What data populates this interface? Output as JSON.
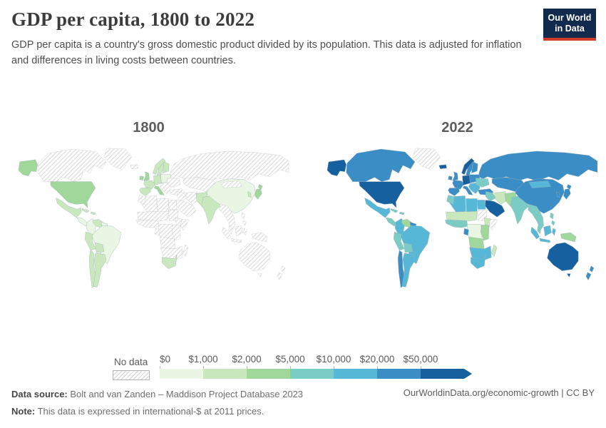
{
  "header": {
    "title": "GDP per capita, 1800 to 2022",
    "subtitle": "GDP per capita is a country's gross domestic product divided by its population. This data is adjusted for inflation and differences in living costs between countries."
  },
  "logo": {
    "line1": "Our World",
    "line2": "in Data",
    "bg": "#122a4d",
    "accent": "#d23a2c"
  },
  "maps": {
    "panels": [
      {
        "year": "1800"
      },
      {
        "year": "2022"
      }
    ]
  },
  "legend": {
    "no_data_label": "No data",
    "tick_labels": [
      "$0",
      "$1,000",
      "$2,000",
      "$5,000",
      "$10,000",
      "$20,000",
      "$50,000"
    ]
  },
  "footer": {
    "source_label": "Data source:",
    "source_text": "Bolt and van Zanden – Maddison Project Database 2023",
    "note_label": "Note:",
    "note_text": "This data is expressed in international-$ at 2011 prices.",
    "right_text": "OurWorldinData.org/economic-growth | CC BY"
  },
  "chart_data": {
    "type": "heatmap",
    "subtype": "choropleth-world-map-pair",
    "title": "GDP per capita, 1800 to 2022",
    "unit": "international-$ at 2011 prices",
    "years": [
      "1800",
      "2022"
    ],
    "bins": [
      {
        "label": "$0–$1,000",
        "color": "#e8f6e3"
      },
      {
        "label": "$1,000–$2,000",
        "color": "#c9e8bd"
      },
      {
        "label": "$2,000–$5,000",
        "color": "#a0d89b"
      },
      {
        "label": "$5,000–$10,000",
        "color": "#7accc4"
      },
      {
        "label": "$10,000–$20,000",
        "color": "#57b7d7"
      },
      {
        "label": "$20,000–$50,000",
        "color": "#3a8ec5"
      },
      {
        "label": "$50,000+",
        "color": "#16609f"
      }
    ],
    "no_data_index": -1,
    "no_data_label": "No data",
    "region_value_order": [
      "1800",
      "2022"
    ],
    "regions": {
      "greenland": [
        -1,
        -1
      ],
      "canada": [
        -1,
        5
      ],
      "alaska": [
        2,
        6
      ],
      "usa": [
        2,
        6
      ],
      "mexico": [
        1,
        4
      ],
      "centralamerica": [
        0,
        3
      ],
      "caribbean": [
        1,
        3
      ],
      "colombia": [
        0,
        4
      ],
      "venezuela": [
        1,
        2
      ],
      "guyanas": [
        0,
        5
      ],
      "peru": [
        1,
        3
      ],
      "brazil": [
        0,
        4
      ],
      "bolivia": [
        1,
        3
      ],
      "chile": [
        1,
        5
      ],
      "argentina": [
        1,
        4
      ],
      "iceland": [
        -1,
        6
      ],
      "britishisles": [
        2,
        5
      ],
      "norway": [
        1,
        6
      ],
      "sweden": [
        1,
        5
      ],
      "finland": [
        1,
        5
      ],
      "france": [
        1,
        5
      ],
      "iberia": [
        1,
        5
      ],
      "germany": [
        1,
        6
      ],
      "poland": [
        0,
        5
      ],
      "italy": [
        2,
        5
      ],
      "balkans": [
        -1,
        4
      ],
      "ukraine": [
        -1,
        3
      ],
      "russia": [
        -1,
        5
      ],
      "kazakhstan": [
        -1,
        5
      ],
      "turkey": [
        -1,
        5
      ],
      "mideast": [
        -1,
        3
      ],
      "iran": [
        -1,
        1
      ],
      "saudiarabia": [
        -1,
        6
      ],
      "egypt": [
        -1,
        4
      ],
      "libya": [
        -1,
        4
      ],
      "algeria": [
        -1,
        4
      ],
      "morocco": [
        -1,
        3
      ],
      "sahel": [
        -1,
        1
      ],
      "westafrica": [
        -1,
        3
      ],
      "sudan": [
        -1,
        -1
      ],
      "ethiopia": [
        -1,
        1
      ],
      "somalia": [
        -1,
        -1
      ],
      "centralafrica": [
        -1,
        0
      ],
      "gabon": [
        -1,
        5
      ],
      "eastafrica": [
        -1,
        2
      ],
      "angolazambia": [
        -1,
        2
      ],
      "southernafrica": [
        -1,
        4
      ],
      "southafrica": [
        1,
        4
      ],
      "madagascar": [
        -1,
        1
      ],
      "pakistan": [
        1,
        2
      ],
      "india": [
        1,
        3
      ],
      "china": [
        0,
        5
      ],
      "mongolia": [
        -1,
        4
      ],
      "korea": [
        1,
        5
      ],
      "japan": [
        2,
        5
      ],
      "seasia": [
        -1,
        3
      ],
      "philippines": [
        -1,
        3
      ],
      "indonesia": [
        -1,
        4
      ],
      "newguinea": [
        -1,
        2
      ],
      "australia": [
        -1,
        6
      ],
      "newzealand": [
        -1,
        5
      ]
    }
  }
}
